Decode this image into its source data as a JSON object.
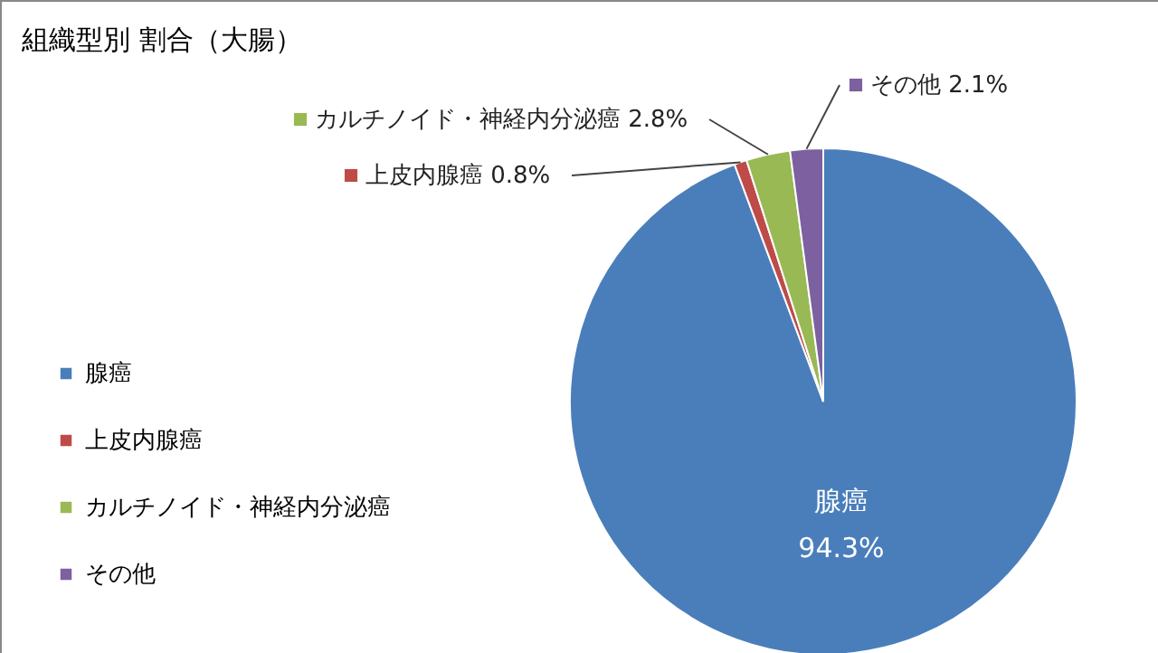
{
  "chart_data": {
    "type": "pie",
    "title": "組織型別 割合（大腸）",
    "categories": [
      "腺癌",
      "上皮内腺癌",
      "カルチノイド・神経内分泌癌",
      "その他"
    ],
    "values": [
      94.3,
      0.8,
      2.8,
      2.1
    ],
    "colors": [
      "#4a7ebb",
      "#be4b48",
      "#98b954",
      "#7d60a0"
    ],
    "value_labels": [
      "94.3%",
      "0.8%",
      "2.8%",
      "2.1%"
    ],
    "legend": "left"
  }
}
